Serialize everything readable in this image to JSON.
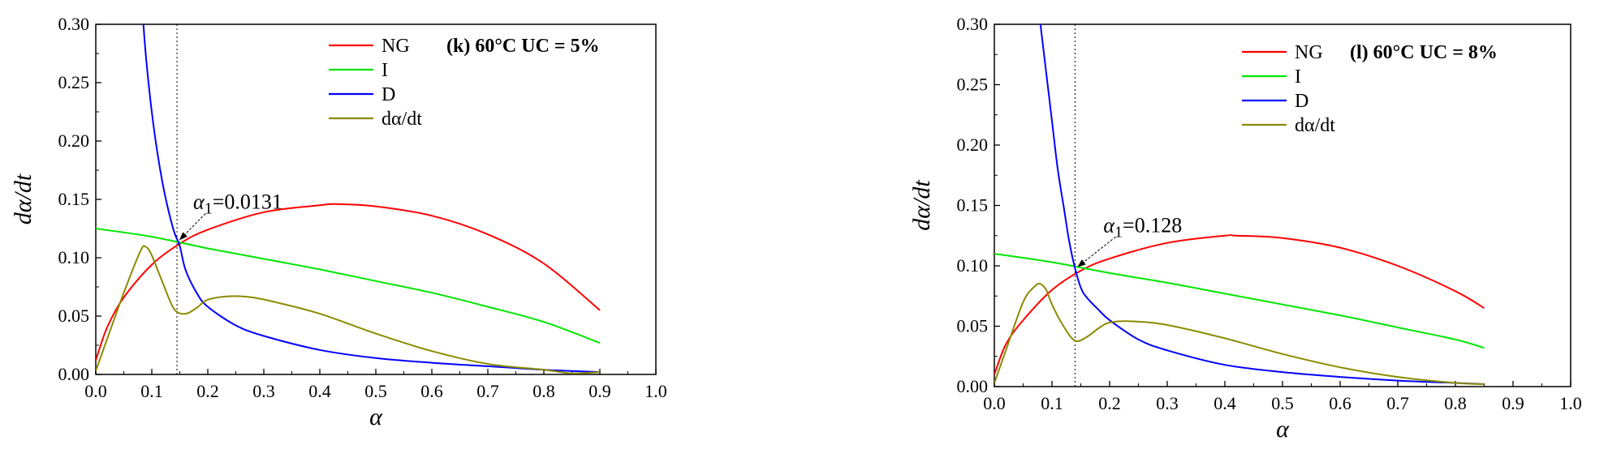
{
  "chart_data": [
    {
      "type": "line",
      "title": "(k) 60°C  UC = 5%",
      "xlabel": "α",
      "ylabel": "dα/dt",
      "xlim": [
        0.0,
        1.0
      ],
      "ylim": [
        0.0,
        0.3
      ],
      "xticks": [
        "0.0",
        "0.1",
        "0.2",
        "0.3",
        "0.4",
        "0.5",
        "0.6",
        "0.7",
        "0.8",
        "0.9",
        "1.0"
      ],
      "yticks": [
        "0.00",
        "0.05",
        "0.10",
        "0.15",
        "0.20",
        "0.25",
        "0.30"
      ],
      "legend_position": "top-right",
      "grid": false,
      "annotation": {
        "symbol": "α",
        "subscript": "1",
        "value_text": "=0.0131",
        "x": 0.145
      },
      "series": [
        {
          "name": "NG",
          "color": "#ff0000",
          "x": [
            0.0,
            0.02,
            0.05,
            0.1,
            0.15,
            0.2,
            0.3,
            0.4,
            0.43,
            0.5,
            0.6,
            0.7,
            0.8,
            0.9
          ],
          "y": [
            0.012,
            0.04,
            0.066,
            0.094,
            0.112,
            0.124,
            0.139,
            0.145,
            0.146,
            0.144,
            0.136,
            0.12,
            0.095,
            0.055
          ]
        },
        {
          "name": "I",
          "color": "#00e600",
          "x": [
            0.0,
            0.1,
            0.2,
            0.3,
            0.4,
            0.5,
            0.6,
            0.7,
            0.8,
            0.9
          ],
          "y": [
            0.125,
            0.118,
            0.108,
            0.099,
            0.09,
            0.08,
            0.07,
            0.058,
            0.045,
            0.027
          ]
        },
        {
          "name": "D",
          "color": "#0000ff",
          "x": [
            0.085,
            0.09,
            0.1,
            0.11,
            0.12,
            0.13,
            0.14,
            0.15,
            0.16,
            0.18,
            0.2,
            0.25,
            0.3,
            0.4,
            0.5,
            0.6,
            0.7,
            0.8,
            0.9
          ],
          "y": [
            0.3,
            0.27,
            0.225,
            0.19,
            0.162,
            0.14,
            0.122,
            0.11,
            0.09,
            0.07,
            0.058,
            0.042,
            0.033,
            0.021,
            0.014,
            0.01,
            0.007,
            0.004,
            0.002
          ]
        },
        {
          "name": "dα/dt",
          "color": "#8b8b00",
          "x": [
            0.0,
            0.02,
            0.05,
            0.08,
            0.09,
            0.1,
            0.12,
            0.14,
            0.16,
            0.18,
            0.2,
            0.24,
            0.28,
            0.32,
            0.4,
            0.5,
            0.6,
            0.7,
            0.8,
            0.85,
            0.9
          ],
          "y": [
            0.003,
            0.03,
            0.07,
            0.106,
            0.109,
            0.102,
            0.078,
            0.056,
            0.052,
            0.057,
            0.064,
            0.067,
            0.066,
            0.062,
            0.052,
            0.035,
            0.02,
            0.009,
            0.004,
            0.001,
            0.002
          ]
        }
      ]
    },
    {
      "type": "line",
      "title": "(l) 60°C  UC = 8%",
      "xlabel": "α",
      "ylabel": "dα/dt",
      "xlim": [
        0.0,
        1.0
      ],
      "ylim": [
        0.0,
        0.3
      ],
      "xticks": [
        "0.0",
        "0.1",
        "0.2",
        "0.3",
        "0.4",
        "0.5",
        "0.6",
        "0.7",
        "0.8",
        "0.9",
        "1.0"
      ],
      "yticks": [
        "0.00",
        "0.05",
        "0.10",
        "0.15",
        "0.20",
        "0.25",
        "0.30"
      ],
      "legend_position": "top-right",
      "grid": false,
      "annotation": {
        "symbol": "α",
        "subscript": "1",
        "value_text": "=0.128",
        "x": 0.14
      },
      "series": [
        {
          "name": "NG",
          "color": "#ff0000",
          "x": [
            0.0,
            0.02,
            0.05,
            0.1,
            0.15,
            0.2,
            0.3,
            0.4,
            0.42,
            0.5,
            0.6,
            0.7,
            0.8,
            0.85
          ],
          "y": [
            0.01,
            0.035,
            0.055,
            0.08,
            0.096,
            0.106,
            0.119,
            0.125,
            0.125,
            0.123,
            0.115,
            0.1,
            0.079,
            0.065
          ]
        },
        {
          "name": "I",
          "color": "#00e600",
          "x": [
            0.0,
            0.1,
            0.2,
            0.3,
            0.4,
            0.5,
            0.6,
            0.7,
            0.8,
            0.85
          ],
          "y": [
            0.11,
            0.103,
            0.094,
            0.086,
            0.077,
            0.068,
            0.059,
            0.049,
            0.039,
            0.032
          ]
        },
        {
          "name": "D",
          "color": "#0000ff",
          "x": [
            0.08,
            0.09,
            0.1,
            0.11,
            0.12,
            0.13,
            0.14,
            0.15,
            0.16,
            0.18,
            0.2,
            0.25,
            0.3,
            0.4,
            0.5,
            0.6,
            0.7,
            0.8,
            0.85
          ],
          "y": [
            0.3,
            0.26,
            0.22,
            0.18,
            0.15,
            0.12,
            0.098,
            0.082,
            0.074,
            0.064,
            0.055,
            0.039,
            0.03,
            0.018,
            0.012,
            0.008,
            0.005,
            0.003,
            0.002
          ]
        },
        {
          "name": "dα/dt",
          "color": "#8b8b00",
          "x": [
            0.0,
            0.02,
            0.05,
            0.07,
            0.08,
            0.09,
            0.1,
            0.12,
            0.14,
            0.16,
            0.18,
            0.2,
            0.24,
            0.3,
            0.4,
            0.5,
            0.6,
            0.7,
            0.8,
            0.85
          ],
          "y": [
            0.003,
            0.03,
            0.07,
            0.083,
            0.085,
            0.08,
            0.068,
            0.05,
            0.038,
            0.041,
            0.048,
            0.053,
            0.054,
            0.051,
            0.04,
            0.027,
            0.016,
            0.008,
            0.003,
            0.002
          ]
        }
      ]
    }
  ]
}
